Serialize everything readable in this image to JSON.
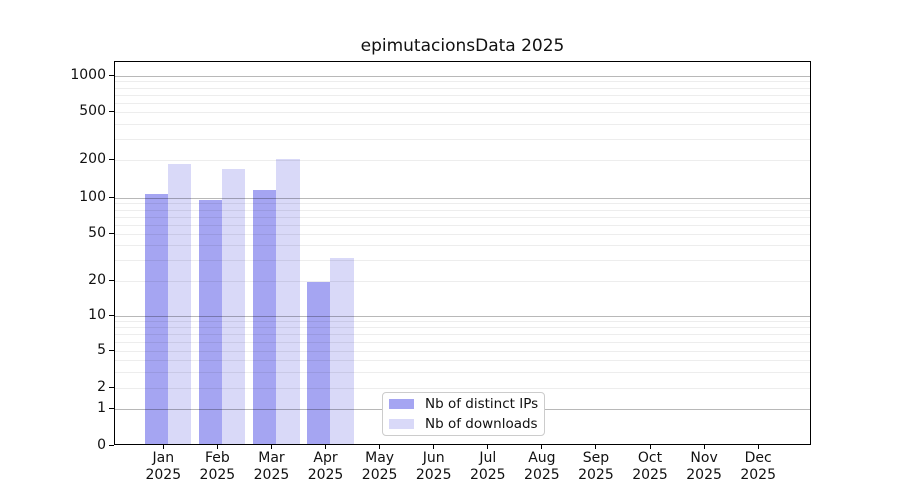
{
  "title": "epimutacionsData 2025",
  "legend": {
    "items": [
      {
        "label": "Nb of distinct IPs",
        "color": "#a5a5f2"
      },
      {
        "label": "Nb of downloads",
        "color": "#d9d9f8"
      }
    ],
    "position": "lower center inside plot"
  },
  "chart_data": {
    "type": "bar",
    "title": "epimutacionsData 2025",
    "year": "2025",
    "months": [
      "Jan",
      "Feb",
      "Mar",
      "Apr",
      "May",
      "Jun",
      "Jul",
      "Aug",
      "Sep",
      "Oct",
      "Nov",
      "Dec"
    ],
    "series": [
      {
        "name": "Nb of distinct IPs",
        "color": "#a5a5f2",
        "values": [
          103,
          93,
          112,
          19,
          0,
          0,
          0,
          0,
          0,
          0,
          0,
          0
        ]
      },
      {
        "name": "Nb of downloads",
        "color": "#d9d9f8",
        "values": [
          180,
          165,
          195,
          30,
          0,
          0,
          0,
          0,
          0,
          0,
          0,
          0
        ]
      }
    ],
    "ytick_labels": [
      0,
      1,
      2,
      5,
      10,
      20,
      50,
      100,
      200,
      500,
      1000
    ],
    "yscale": "log (with 0 baseline)",
    "ylim": [
      0,
      1000
    ],
    "grid": "horizontal, major and minor",
    "legend_position": "lower center"
  }
}
